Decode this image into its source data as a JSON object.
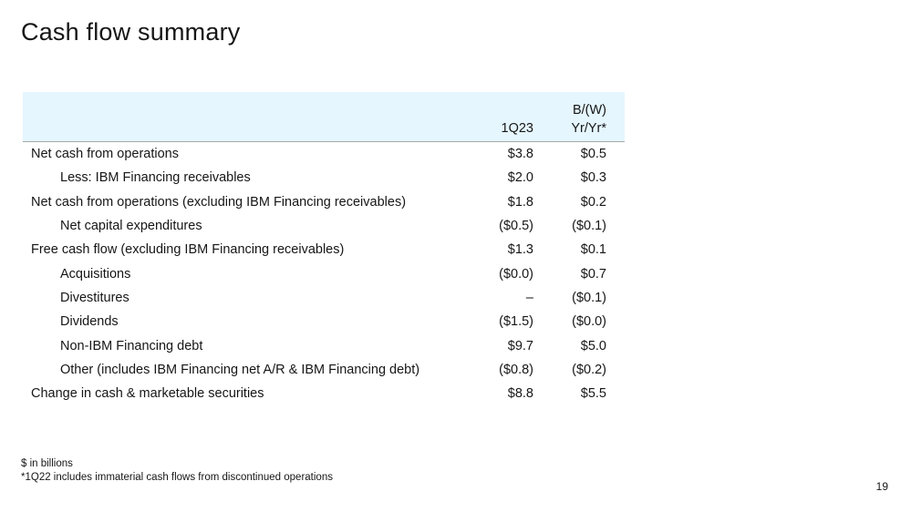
{
  "title": "Cash flow summary",
  "table": {
    "header": {
      "col1": "1Q23",
      "col2_line1": "B/(W)",
      "col2_line2": "Yr/Yr*"
    },
    "rows": [
      {
        "label": "Net cash from operations",
        "indent": false,
        "v1": "$3.8",
        "v2": "$0.5"
      },
      {
        "label": "Less: IBM Financing receivables",
        "indent": true,
        "v1": "$2.0",
        "v2": "$0.3"
      },
      {
        "label": "Net cash from operations (excluding IBM Financing receivables)",
        "indent": false,
        "v1": "$1.8",
        "v2": "$0.2"
      },
      {
        "label": "Net capital expenditures",
        "indent": true,
        "v1": "($0.5)",
        "v2": "($0.1)"
      },
      {
        "label": "Free cash flow (excluding IBM Financing receivables)",
        "indent": false,
        "v1": "$1.3",
        "v2": "$0.1"
      },
      {
        "label": "Acquisitions",
        "indent": true,
        "v1": "($0.0)",
        "v2": "$0.7"
      },
      {
        "label": "Divestitures",
        "indent": true,
        "v1": "–",
        "v2": "($0.1)"
      },
      {
        "label": "Dividends",
        "indent": true,
        "v1": "($1.5)",
        "v2": "($0.0)"
      },
      {
        "label": "Non-IBM Financing debt",
        "indent": true,
        "v1": "$9.7",
        "v2": "$5.0"
      },
      {
        "label": "Other (includes IBM Financing net A/R & IBM Financing debt)",
        "indent": true,
        "v1": "($0.8)",
        "v2": "($0.2)"
      },
      {
        "label": "Change in cash & marketable securities",
        "indent": false,
        "v1": "$8.8",
        "v2": "$5.5"
      }
    ]
  },
  "footnotes": {
    "line1": "$ in billions",
    "line2": "*1Q22 includes immaterial cash flows from discontinued operations"
  },
  "page_number": "19",
  "colors": {
    "header_background": "#e5f6ff",
    "text": "#161616",
    "rule": "#a8a8a8"
  }
}
